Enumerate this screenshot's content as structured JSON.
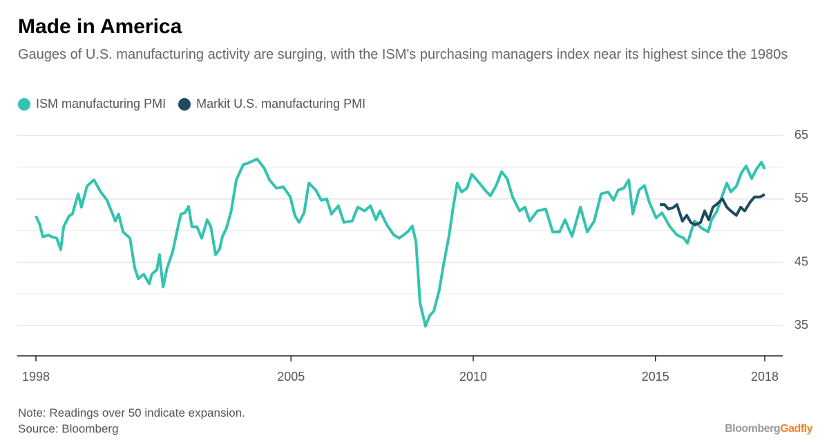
{
  "chart_data": {
    "type": "line",
    "title": "Made in America",
    "subtitle": "Gauges of U.S. manufacturing activity are surging, with the ISM's purchasing managers index near its highest since the 1980s",
    "note": "Note: Readings over 50 indicate expansion.",
    "source": "Source: Bloomberg",
    "brand": [
      "Bloomberg",
      "Gadfly"
    ],
    "brand_colors": [
      "#999999",
      "#f58220"
    ],
    "xlim": [
      1998,
      2018
    ],
    "xticks": [
      1998,
      2005,
      2010,
      2015,
      2018
    ],
    "ylim": [
      30,
      66
    ],
    "yticks": [
      35,
      45,
      55,
      65
    ],
    "minor_yticks": [
      40,
      50,
      60
    ],
    "grid": true,
    "series": [
      {
        "name": "ISM manufacturing PMI",
        "color": "#33c3b0",
        "x": [
          1998.0,
          1998.11,
          1998.19,
          1998.34,
          1998.44,
          1998.57,
          1998.68,
          1998.76,
          1998.91,
          1999.0,
          1999.16,
          1999.25,
          1999.4,
          1999.59,
          1999.78,
          1999.95,
          2000.18,
          2000.27,
          2000.39,
          2000.58,
          2000.71,
          2000.81,
          2000.96,
          2001.11,
          2001.18,
          2001.32,
          2001.39,
          2001.49,
          2001.6,
          2001.75,
          2001.91,
          2001.98,
          2002.09,
          2002.19,
          2002.28,
          2002.42,
          2002.55,
          2002.7,
          2002.8,
          2002.93,
          2003.04,
          2003.12,
          2003.23,
          2003.36,
          2003.5,
          2003.69,
          2003.84,
          2004.07,
          2004.26,
          2004.41,
          2004.6,
          2004.79,
          2004.98,
          2005.11,
          2005.22,
          2005.36,
          2005.49,
          2005.68,
          2005.83,
          2005.98,
          2006.11,
          2006.3,
          2006.45,
          2006.68,
          2006.83,
          2007.02,
          2007.18,
          2007.33,
          2007.44,
          2007.63,
          2007.82,
          2007.97,
          2008.2,
          2008.33,
          2008.43,
          2008.54,
          2008.69,
          2008.81,
          2008.92,
          2009.07,
          2009.18,
          2009.34,
          2009.45,
          2009.56,
          2009.68,
          2009.83,
          2009.96,
          2010.17,
          2010.32,
          2010.47,
          2010.63,
          2010.78,
          2010.93,
          2011.08,
          2011.27,
          2011.42,
          2011.55,
          2011.76,
          2011.99,
          2012.18,
          2012.37,
          2012.52,
          2012.71,
          2012.94,
          2013.13,
          2013.32,
          2013.51,
          2013.7,
          2013.85,
          2013.98,
          2014.13,
          2014.27,
          2014.38,
          2014.55,
          2014.7,
          2014.83,
          2015.02,
          2015.18,
          2015.4,
          2015.59,
          2015.78,
          2015.88,
          2016.07,
          2016.26,
          2016.45,
          2016.54,
          2016.69,
          2016.82,
          2016.96,
          2017.07,
          2017.22,
          2017.36,
          2017.49,
          2017.64,
          2017.77,
          2017.91,
          2018.0
        ],
        "values": [
          52.3,
          50.9,
          49.0,
          49.3,
          49.0,
          48.8,
          47.0,
          50.6,
          52.3,
          52.6,
          55.8,
          53.7,
          57.0,
          58.0,
          56.1,
          54.8,
          51.5,
          52.6,
          49.8,
          48.8,
          44.1,
          42.4,
          43.1,
          41.6,
          43.1,
          43.8,
          46.2,
          41.1,
          44.1,
          46.6,
          50.9,
          52.6,
          52.8,
          53.8,
          50.6,
          50.6,
          48.8,
          51.7,
          50.6,
          46.2,
          47.1,
          49.1,
          50.4,
          53.1,
          58.0,
          60.4,
          60.7,
          61.3,
          59.9,
          58.0,
          56.7,
          56.9,
          55.3,
          52.3,
          51.3,
          52.8,
          57.5,
          56.4,
          54.8,
          55.0,
          52.6,
          53.9,
          51.3,
          51.5,
          53.7,
          53.1,
          53.9,
          51.7,
          53.1,
          50.9,
          49.3,
          48.8,
          49.8,
          50.7,
          48.2,
          38.6,
          34.9,
          36.6,
          37.3,
          40.6,
          44.4,
          49.3,
          53.7,
          57.5,
          56.1,
          56.7,
          58.9,
          57.5,
          56.4,
          55.5,
          57.1,
          59.3,
          58.2,
          55.3,
          53.1,
          53.7,
          51.5,
          53.1,
          53.4,
          49.8,
          49.8,
          51.7,
          49.1,
          53.7,
          49.8,
          51.5,
          55.8,
          56.1,
          54.8,
          56.4,
          56.7,
          58.0,
          52.6,
          56.4,
          57.1,
          54.5,
          52.0,
          52.8,
          50.6,
          49.3,
          48.8,
          48.0,
          51.5,
          50.4,
          49.8,
          51.7,
          53.1,
          55.3,
          57.5,
          56.1,
          57.0,
          59.1,
          60.2,
          58.2,
          59.7,
          60.8,
          59.7
        ]
      },
      {
        "name": "Markit U.S. manufacturing PMI",
        "color": "#1f4b60",
        "x": [
          2015.12,
          2015.25,
          2015.36,
          2015.48,
          2015.59,
          2015.74,
          2015.86,
          2015.97,
          2016.09,
          2016.24,
          2016.35,
          2016.46,
          2016.58,
          2016.69,
          2016.84,
          2016.96,
          2017.07,
          2017.22,
          2017.34,
          2017.45,
          2017.6,
          2017.72,
          2017.87,
          2018.0
        ],
        "values": [
          54.1,
          54.1,
          53.4,
          53.6,
          54.1,
          51.5,
          52.4,
          51.3,
          50.9,
          51.3,
          53.1,
          51.7,
          53.7,
          54.2,
          55.0,
          53.7,
          53.1,
          52.4,
          53.7,
          53.1,
          54.5,
          55.3,
          55.3,
          55.7
        ]
      }
    ]
  }
}
